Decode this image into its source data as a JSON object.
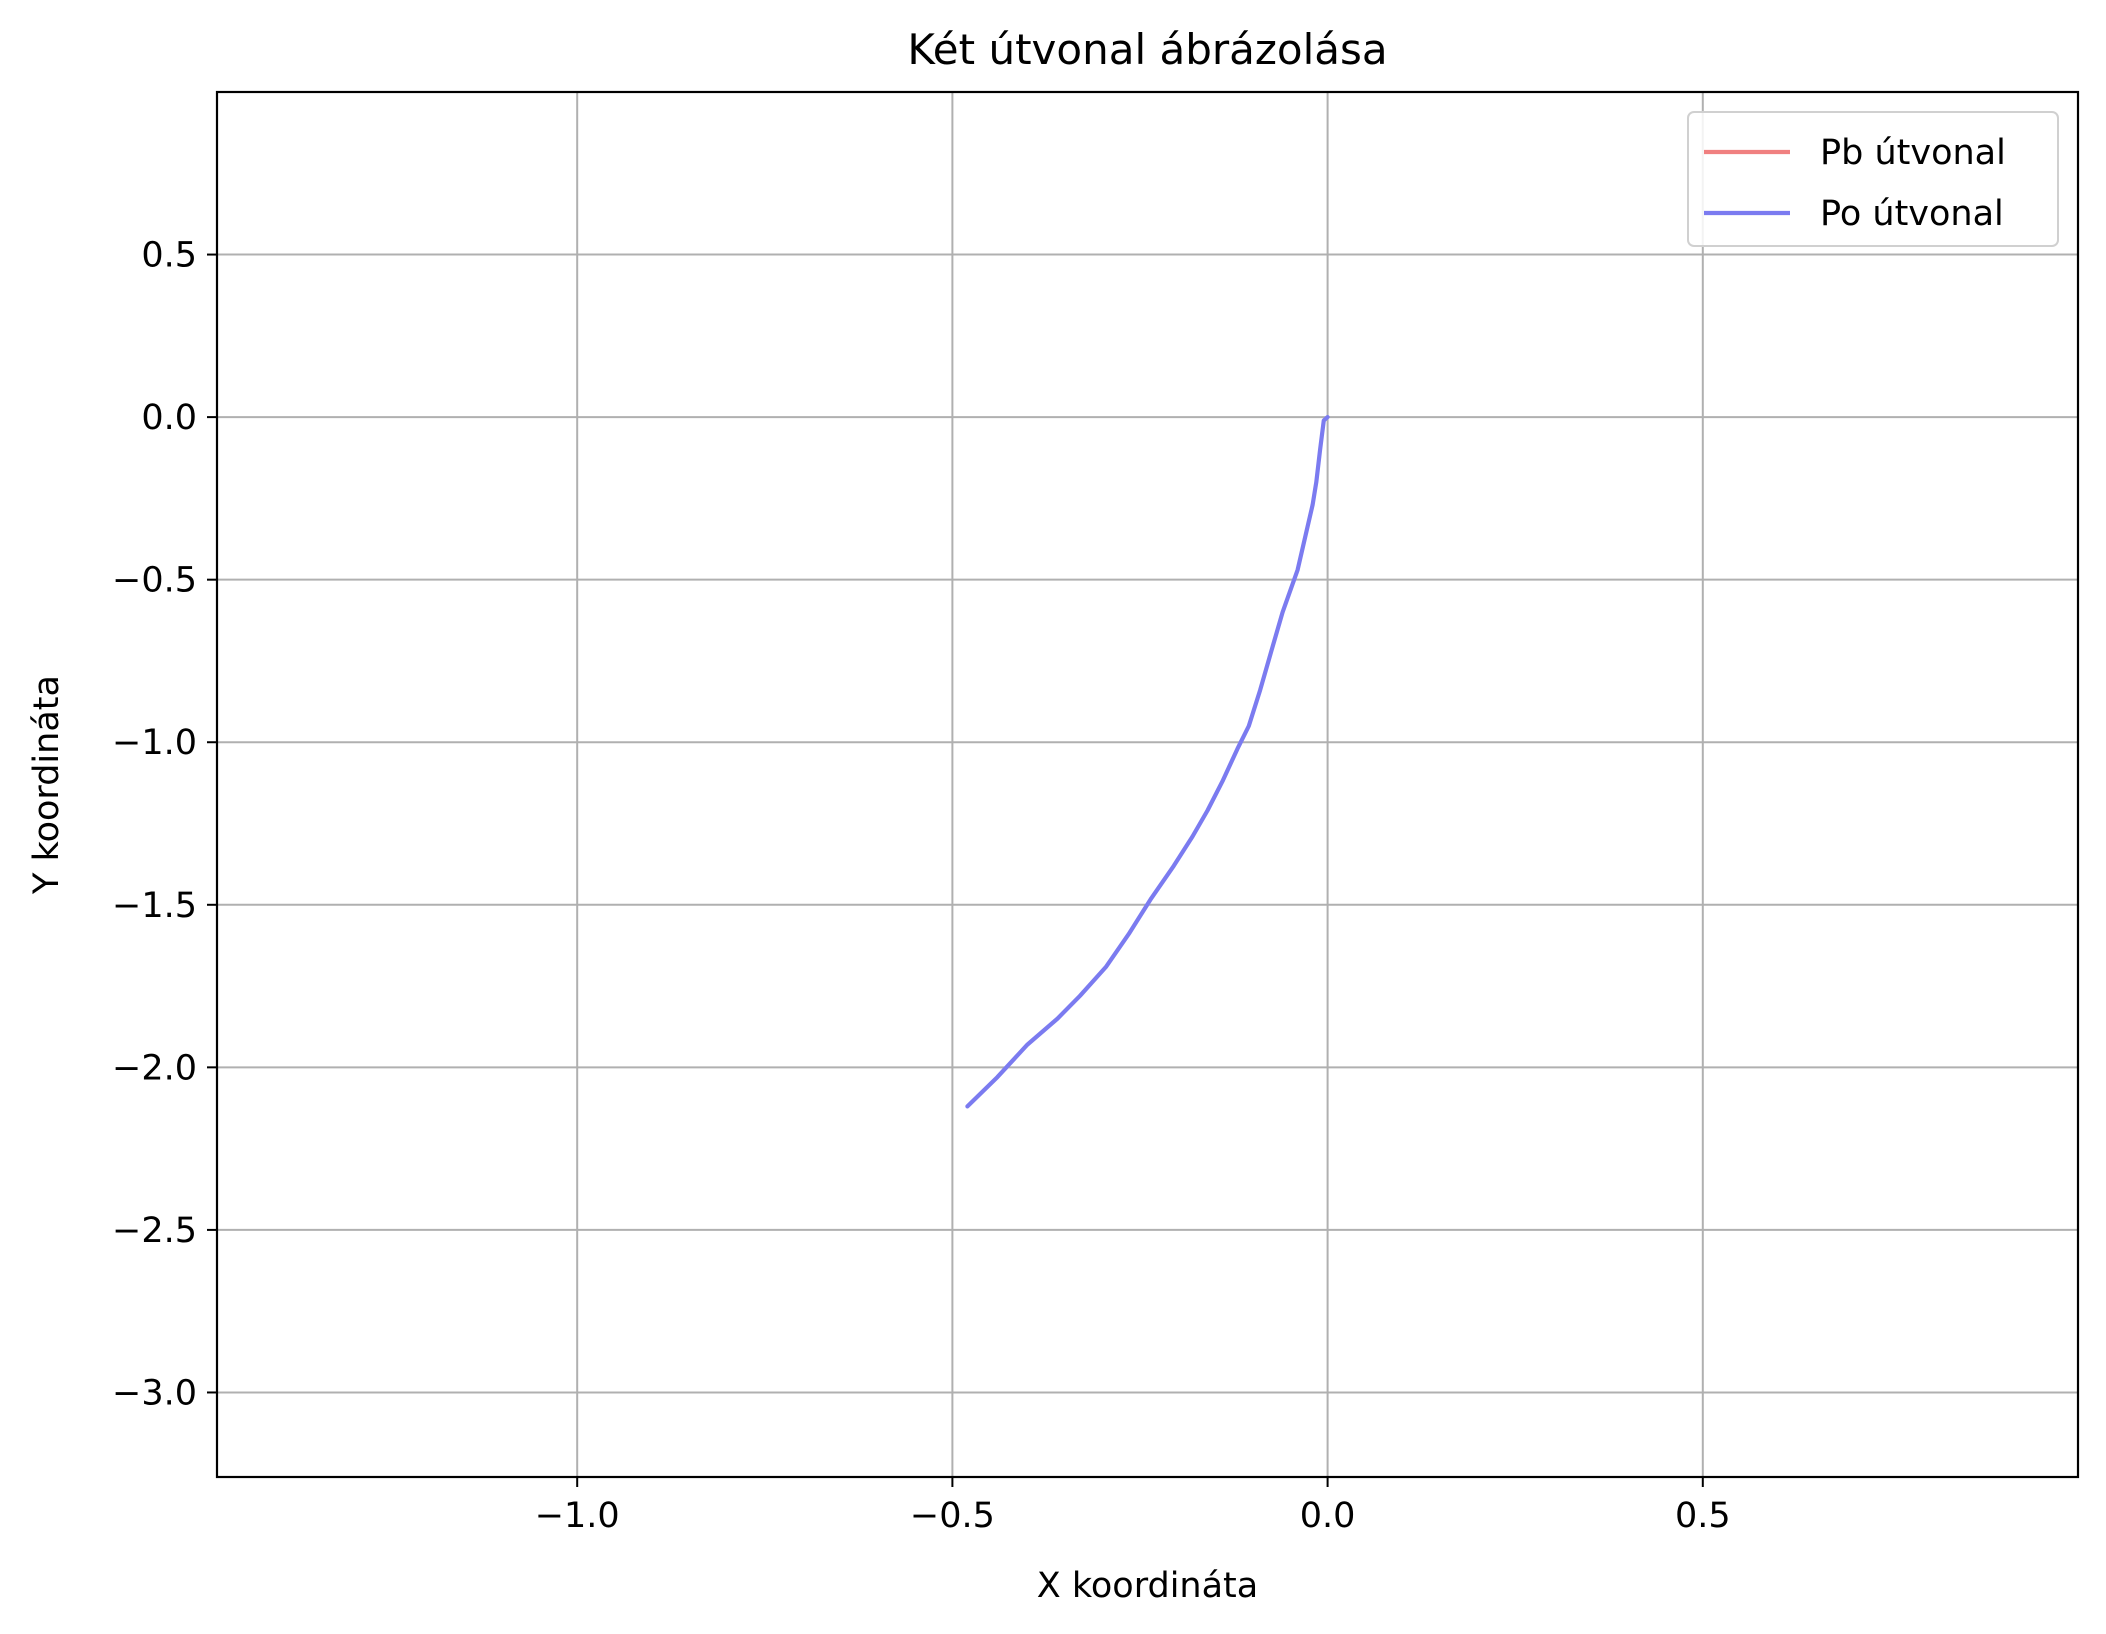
{
  "chart_data": {
    "type": "line",
    "title": "Két útvonal ábrázolása",
    "xlabel": "X koordináta",
    "ylabel": "Y koordináta",
    "xlim": [
      -1.48,
      1.0
    ],
    "ylim": [
      -3.26,
      1.0
    ],
    "x_ticks": [
      -1.0,
      -0.5,
      0.0,
      0.5
    ],
    "x_tick_labels": [
      "−1.0",
      "−0.5",
      "0.0",
      "0.5"
    ],
    "y_ticks": [
      0.5,
      0.0,
      -0.5,
      -1.0,
      -1.5,
      -2.0,
      -2.5,
      -3.0
    ],
    "y_tick_labels": [
      "0.5",
      "0.0",
      "−0.5",
      "−1.0",
      "−1.5",
      "−2.0",
      "−2.5",
      "−3.0"
    ],
    "grid": true,
    "legend_position": "upper-right",
    "series": [
      {
        "name": "Pb útvonal",
        "color": "#f08080",
        "x": [],
        "y": []
      },
      {
        "name": "Po útvonal",
        "color": "#7b7bf0",
        "x": [
          0.0,
          -0.005,
          -0.01,
          -0.015,
          -0.02,
          -0.03,
          -0.04,
          -0.06,
          -0.075,
          -0.09,
          -0.105,
          -0.12,
          -0.14,
          -0.16,
          -0.18,
          -0.205,
          -0.235,
          -0.265,
          -0.295,
          -0.33,
          -0.36,
          -0.4,
          -0.44,
          -0.48
        ],
        "y": [
          0.0,
          -0.01,
          -0.1,
          -0.2,
          -0.27,
          -0.37,
          -0.47,
          -0.6,
          -0.72,
          -0.84,
          -0.95,
          -1.02,
          -1.12,
          -1.21,
          -1.29,
          -1.38,
          -1.48,
          -1.59,
          -1.69,
          -1.78,
          -1.85,
          -1.93,
          -2.03,
          -2.12
        ]
      }
    ]
  }
}
